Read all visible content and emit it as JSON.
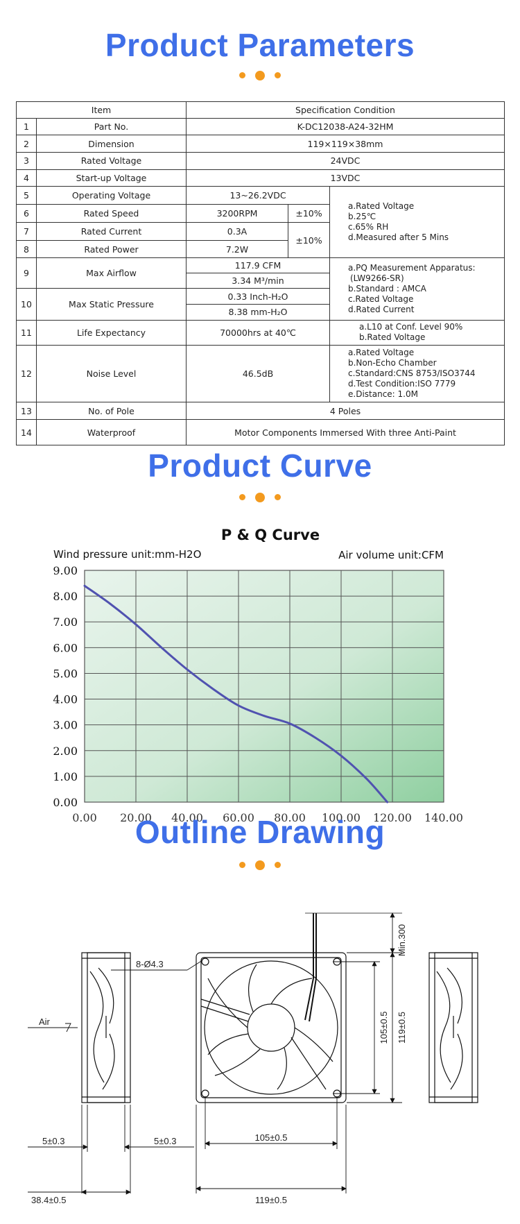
{
  "sections": {
    "params_title": "Product Parameters",
    "curve_title": "Product Curve",
    "outline_title": "Outline Drawing"
  },
  "table": {
    "header_item": "Item",
    "header_spec": "Specification Condition",
    "rows": [
      {
        "no": "1",
        "item": "Part No.",
        "spec": "K-DC12038-A24-32HM"
      },
      {
        "no": "2",
        "item": "Dimension",
        "spec": "119×119×38mm"
      },
      {
        "no": "3",
        "item": "Rated Voltage",
        "spec": "24VDC"
      },
      {
        "no": "4",
        "item": "Start-up Voltage",
        "spec": "13VDC"
      },
      {
        "no": "5",
        "item": "Operating Voltage",
        "spec": "13~26.2VDC"
      },
      {
        "no": "6",
        "item": "Rated Speed",
        "spec": "3200RPM",
        "tol": "±10%"
      },
      {
        "no": "7",
        "item": "Rated Current",
        "spec": "0.3A",
        "tol": "±10%"
      },
      {
        "no": "8",
        "item": "Rated Power",
        "spec": "7.2W"
      },
      {
        "no": "9",
        "item": "Max Airflow",
        "spec": "117.9 CFM",
        "spec2": "3.34 M³/min"
      },
      {
        "no": "10",
        "item": "Max Static Pressure",
        "spec": "0.33 Inch-H₂O",
        "spec2": "8.38 mm-H₂O"
      },
      {
        "no": "11",
        "item": "Life Expectancy",
        "spec": "70000hrs at 40℃"
      },
      {
        "no": "12",
        "item": "Noise Level",
        "spec": "46.5dB"
      },
      {
        "no": "13",
        "item": "No. of Pole",
        "spec": "4 Poles"
      },
      {
        "no": "14",
        "item": "Waterproof",
        "spec": "Motor Components Immersed With three Anti-Paint"
      }
    ],
    "notes_5_8": [
      "a.Rated Voltage",
      "b.25℃",
      "c.65% RH",
      "d.Measured after 5 Mins"
    ],
    "notes_9_10": [
      "a.PQ Measurement Apparatus:",
      "(LW9266-SR)",
      "b.Standard : AMCA",
      "c.Rated Voltage",
      "d.Rated Current"
    ],
    "notes_11": [
      "a.L10 at Conf. Level 90%",
      "b.Rated Voltage"
    ],
    "notes_12": [
      "a.Rated Voltage",
      "b.Non-Echo Chamber",
      "c.Standard:CNS 8753/ISO3744",
      "d.Test Condition:ISO 7779",
      "e.Distance: 1.0M"
    ]
  },
  "chart_data": {
    "type": "line",
    "title": "P & Q Curve",
    "ylabel": "Wind pressure unit:mm-H2O",
    "xlabel": "Air volume unit:CFM",
    "xlim": [
      0,
      140
    ],
    "ylim": [
      0,
      9
    ],
    "x_ticks": [
      "0.00",
      "20.00",
      "40.00",
      "60.00",
      "80.00",
      "100.00",
      "120.00",
      "140.00"
    ],
    "y_ticks": [
      "0.00",
      "1.00",
      "2.00",
      "3.00",
      "4.00",
      "5.00",
      "6.00",
      "7.00",
      "8.00",
      "9.00"
    ],
    "grid": true,
    "colors": {
      "line": "#5052b0",
      "bg_start": "#e8f4ec",
      "bg_end": "#8fcfa0",
      "grid": "#555555"
    },
    "series": [
      {
        "x": [
          0,
          10,
          20,
          30,
          40,
          50,
          60,
          70,
          80,
          90,
          100,
          110,
          118
        ],
        "y": [
          8.4,
          7.7,
          6.9,
          6.0,
          5.15,
          4.4,
          3.75,
          3.35,
          3.05,
          2.5,
          1.8,
          0.9,
          0.0
        ]
      }
    ]
  },
  "outline": {
    "holes": "8-Ø4.3",
    "air": "Air",
    "min_lead": "Min.300",
    "dim_105_v": "105±0.5",
    "dim_119_v": "119±0.5",
    "dim_105_h": "105±0.5",
    "dim_119_h": "119±0.5",
    "dim_5_left": "5±0.3",
    "dim_5_right": "5±0.3",
    "dim_384": "38.4±0.5"
  }
}
